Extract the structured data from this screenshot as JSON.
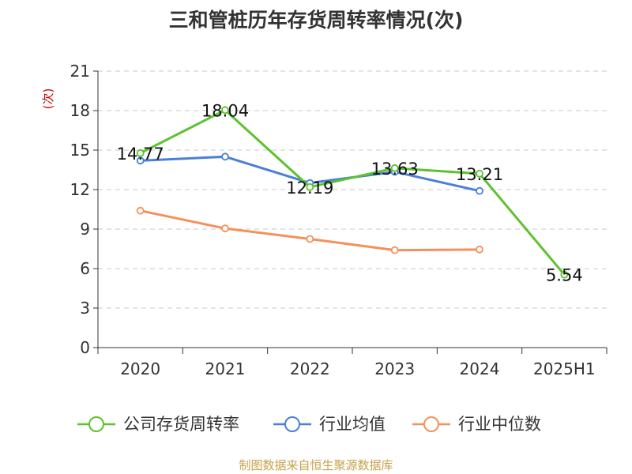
{
  "chart_data": {
    "type": "line",
    "title": "三和管桩历年存货周转率情况(次)",
    "ylabel": "(次)",
    "categories": [
      "2020",
      "2021",
      "2022",
      "2023",
      "2024",
      "2025H1"
    ],
    "ylim": [
      0,
      21
    ],
    "yticks": [
      0,
      3,
      6,
      9,
      12,
      15,
      18,
      21
    ],
    "grid": true,
    "legend_position": "bottom",
    "series": [
      {
        "name": "公司存货周转率",
        "color": "#5cc22e",
        "values": [
          14.77,
          18.04,
          12.19,
          13.63,
          13.21,
          5.54
        ],
        "labels": [
          "14.77",
          "18.04",
          "12.19",
          "13.63",
          "13.21",
          "5.54"
        ]
      },
      {
        "name": "行业均值",
        "color": "#4a7fd8",
        "values": [
          14.2,
          14.5,
          12.5,
          13.35,
          11.9,
          null
        ]
      },
      {
        "name": "行业中位数",
        "color": "#f5905a",
        "values": [
          10.4,
          9.05,
          8.25,
          7.4,
          7.45,
          null
        ]
      }
    ]
  },
  "source": "制图数据来自恒生聚源数据库"
}
